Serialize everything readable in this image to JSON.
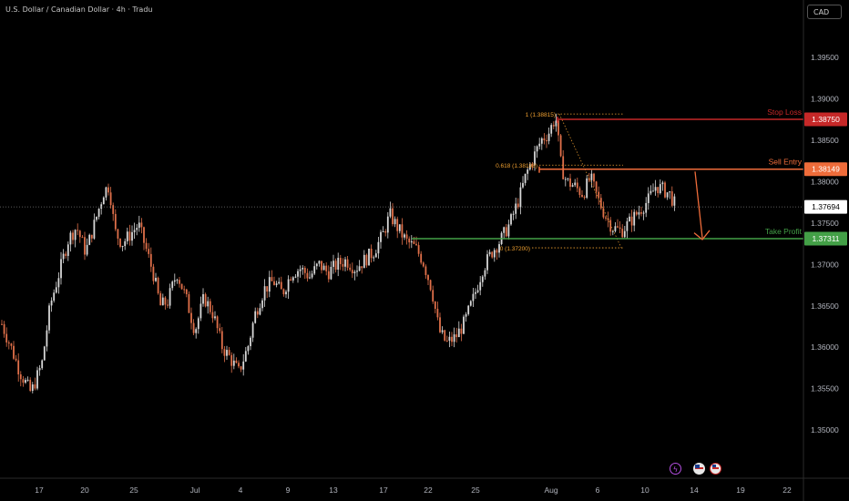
{
  "header": {
    "symbol_title": "U.S. Dollar / Canadian Dollar · 4h · Tradu",
    "currency": "CAD"
  },
  "bottom_icons": [
    "lightning-event-icon",
    "us-flag-event-icon",
    "us-flag-event-icon-2"
  ],
  "colors": {
    "background": "#000000",
    "up_candle": "#d8d8d8",
    "down_candle": "#e0704a",
    "stop_loss": "#c62828",
    "sell_entry": "#ef6c3a",
    "take_profit": "#43a047",
    "fib": "#f0a030",
    "current_price_bg": "#ffffff"
  },
  "chart_data": {
    "type": "candlestick",
    "title": "U.S. Dollar / Canadian Dollar · 4h · Tradu",
    "y_axis": {
      "ticks": [
        "1.39500",
        "1.39000",
        "1.38500",
        "1.38000",
        "1.37500",
        "1.37000",
        "1.36500",
        "1.36000",
        "1.35500",
        "1.35000"
      ],
      "range": [
        1.3464,
        1.3997
      ]
    },
    "x_axis": {
      "ticks": [
        "17",
        "20",
        "25",
        "Jul",
        "4",
        "9",
        "13",
        "17",
        "22",
        "25",
        "Aug",
        "6",
        "10",
        "14",
        "19",
        "22"
      ]
    },
    "price_levels": [
      {
        "name": "Stop Loss",
        "price": "1.38750",
        "value": 1.3875
      },
      {
        "name": "Sell Entry",
        "price": "1.38149",
        "value": 1.38149
      },
      {
        "name": "Take Profit",
        "price": "1.37311",
        "value": 1.37311
      }
    ],
    "current_price": {
      "label": "1.37694",
      "value": 1.37694
    },
    "fibonacci": [
      {
        "label": "1 (1.38815)",
        "value": 1.38815
      },
      {
        "label": "0.618 (1.38198)",
        "value": 1.38198
      },
      {
        "label": "0 (1.37200)",
        "value": 1.372
      }
    ],
    "price_path": [
      [
        2,
        1.3628
      ],
      [
        12,
        1.36
      ],
      [
        22,
        1.357
      ],
      [
        34,
        1.3545
      ],
      [
        46,
        1.358
      ],
      [
        55,
        1.365
      ],
      [
        65,
        1.369
      ],
      [
        75,
        1.373
      ],
      [
        84,
        1.3745
      ],
      [
        94,
        1.3715
      ],
      [
        104,
        1.375
      ],
      [
        114,
        1.3788
      ],
      [
        120,
        1.3795
      ],
      [
        126,
        1.374
      ],
      [
        134,
        1.3725
      ],
      [
        142,
        1.3735
      ],
      [
        152,
        1.3748
      ],
      [
        160,
        1.372
      ],
      [
        168,
        1.369
      ],
      [
        176,
        1.365
      ],
      [
        184,
        1.3655
      ],
      [
        194,
        1.369
      ],
      [
        204,
        1.366
      ],
      [
        214,
        1.362
      ],
      [
        224,
        1.366
      ],
      [
        234,
        1.364
      ],
      [
        244,
        1.36
      ],
      [
        252,
        1.3588
      ],
      [
        262,
        1.357
      ],
      [
        272,
        1.36
      ],
      [
        280,
        1.364
      ],
      [
        290,
        1.367
      ],
      [
        300,
        1.368
      ],
      [
        310,
        1.3665
      ],
      [
        320,
        1.369
      ],
      [
        330,
        1.3695
      ],
      [
        340,
        1.3685
      ],
      [
        350,
        1.37
      ],
      [
        360,
        1.369
      ],
      [
        370,
        1.37
      ],
      [
        380,
        1.3705
      ],
      [
        390,
        1.3695
      ],
      [
        400,
        1.3705
      ],
      [
        410,
        1.3715
      ],
      [
        420,
        1.3735
      ],
      [
        428,
        1.376
      ],
      [
        436,
        1.3745
      ],
      [
        446,
        1.3728
      ],
      [
        456,
        1.372
      ],
      [
        464,
        1.3705
      ],
      [
        474,
        1.367
      ],
      [
        482,
        1.362
      ],
      [
        490,
        1.3605
      ],
      [
        500,
        1.3612
      ],
      [
        510,
        1.363
      ],
      [
        520,
        1.366
      ],
      [
        530,
        1.3695
      ],
      [
        540,
        1.3715
      ],
      [
        550,
        1.373
      ],
      [
        560,
        1.375
      ],
      [
        570,
        1.378
      ],
      [
        578,
        1.381
      ],
      [
        586,
        1.383
      ],
      [
        594,
        1.385
      ],
      [
        602,
        1.3858
      ],
      [
        610,
        1.3878
      ],
      [
        616,
        1.3818
      ],
      [
        622,
        1.38
      ],
      [
        630,
        1.3795
      ],
      [
        640,
        1.3785
      ],
      [
        648,
        1.3805
      ],
      [
        656,
        1.378
      ],
      [
        664,
        1.376
      ],
      [
        672,
        1.3745
      ],
      [
        682,
        1.374
      ],
      [
        692,
        1.3752
      ],
      [
        702,
        1.3765
      ],
      [
        712,
        1.3778
      ],
      [
        720,
        1.3795
      ],
      [
        728,
        1.379
      ],
      [
        735,
        1.3785
      ],
      [
        742,
        1.377
      ]
    ]
  }
}
